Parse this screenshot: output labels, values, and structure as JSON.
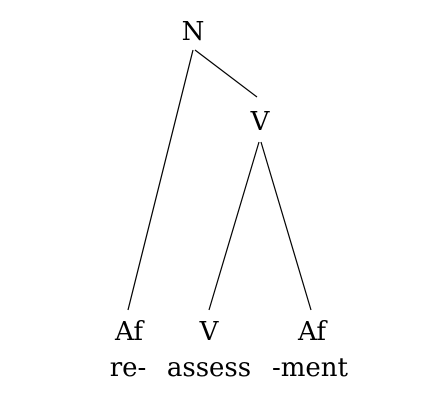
{
  "tree": {
    "root": {
      "label": "N"
    },
    "inner": {
      "label": "V"
    },
    "leaves": [
      {
        "category": "Af",
        "word": "re-"
      },
      {
        "category": "V",
        "word": "assess"
      },
      {
        "category": "Af",
        "word": "-ment"
      }
    ]
  }
}
